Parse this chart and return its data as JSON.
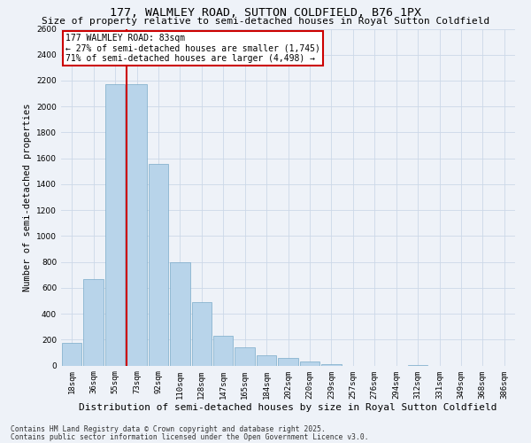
{
  "title": "177, WALMLEY ROAD, SUTTON COLDFIELD, B76 1PX",
  "subtitle": "Size of property relative to semi-detached houses in Royal Sutton Coldfield",
  "xlabel": "Distribution of semi-detached houses by size in Royal Sutton Coldfield",
  "ylabel": "Number of semi-detached properties",
  "categories": [
    "18sqm",
    "36sqm",
    "55sqm",
    "73sqm",
    "92sqm",
    "110sqm",
    "128sqm",
    "147sqm",
    "165sqm",
    "184sqm",
    "202sqm",
    "220sqm",
    "239sqm",
    "257sqm",
    "276sqm",
    "294sqm",
    "312sqm",
    "331sqm",
    "349sqm",
    "368sqm",
    "386sqm"
  ],
  "values": [
    175,
    670,
    2170,
    2170,
    1560,
    800,
    490,
    230,
    140,
    80,
    55,
    30,
    10,
    0,
    0,
    0,
    5,
    0,
    0,
    0,
    0
  ],
  "bar_color": "#b8d4ea",
  "bar_edge_color": "#7aaac8",
  "grid_color": "#ccd8e8",
  "bg_color": "#eef2f8",
  "vline_color": "#cc0000",
  "vline_x_index": 3,
  "annotation_title": "177 WALMLEY ROAD: 83sqm",
  "annotation_line1": "← 27% of semi-detached houses are smaller (1,745)",
  "annotation_line2": "71% of semi-detached houses are larger (4,498) →",
  "annotation_box_color": "#cc0000",
  "ylim": [
    0,
    2600
  ],
  "yticks": [
    0,
    200,
    400,
    600,
    800,
    1000,
    1200,
    1400,
    1600,
    1800,
    2000,
    2200,
    2400,
    2600
  ],
  "footnote1": "Contains HM Land Registry data © Crown copyright and database right 2025.",
  "footnote2": "Contains public sector information licensed under the Open Government Licence v3.0.",
  "title_fontsize": 9.5,
  "subtitle_fontsize": 8,
  "xlabel_fontsize": 8,
  "ylabel_fontsize": 7.5,
  "tick_fontsize": 6.5,
  "annot_fontsize": 7,
  "footnote_fontsize": 5.8
}
